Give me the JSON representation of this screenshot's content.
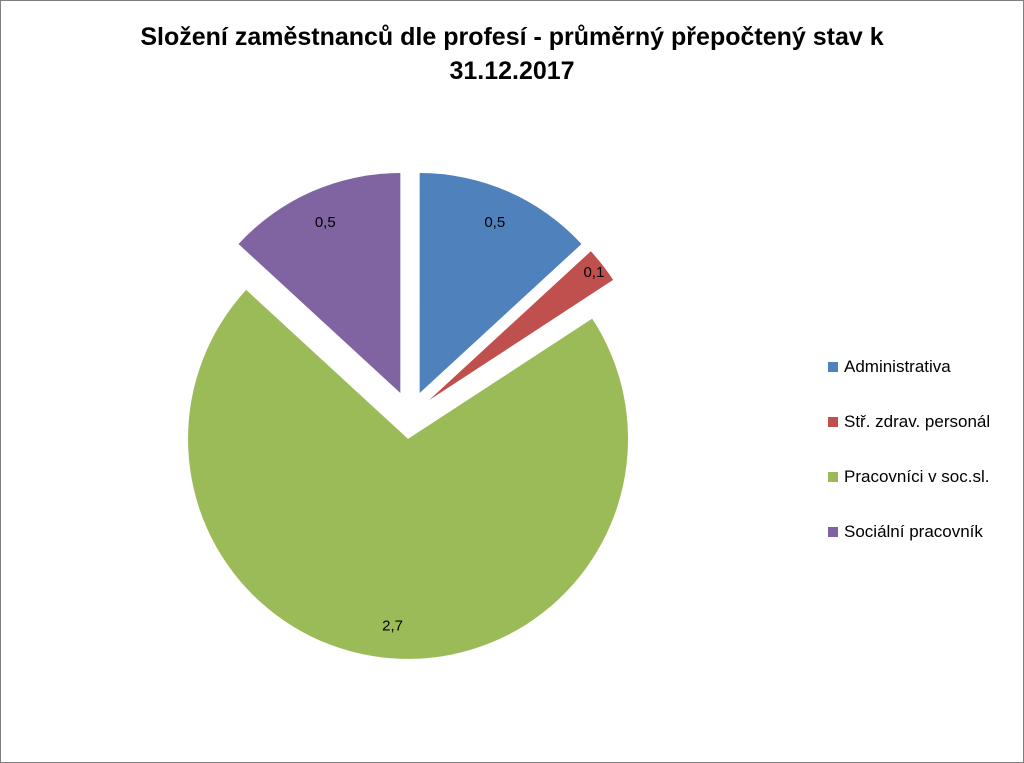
{
  "chart_data": {
    "type": "pie",
    "title_lines": [
      "Složení zaměstnanců dle profesí - průměrný přepočtený stav k",
      "31.12.2017"
    ],
    "slices": [
      {
        "name": "Administrativa",
        "value": 0.5,
        "label": "0,5",
        "color": "#4F81BD"
      },
      {
        "name": "Stř. zdrav. personál",
        "value": 0.1,
        "label": "0,1",
        "color": "#C0504D"
      },
      {
        "name": "Pracovníci v soc.sl.",
        "value": 2.7,
        "label": "2,7",
        "color": "#9BBB59"
      },
      {
        "name": "Sociální pracovník",
        "value": 0.5,
        "label": "0,5",
        "color": "#8064A2"
      }
    ],
    "exploded": true,
    "legend_position": "right"
  }
}
